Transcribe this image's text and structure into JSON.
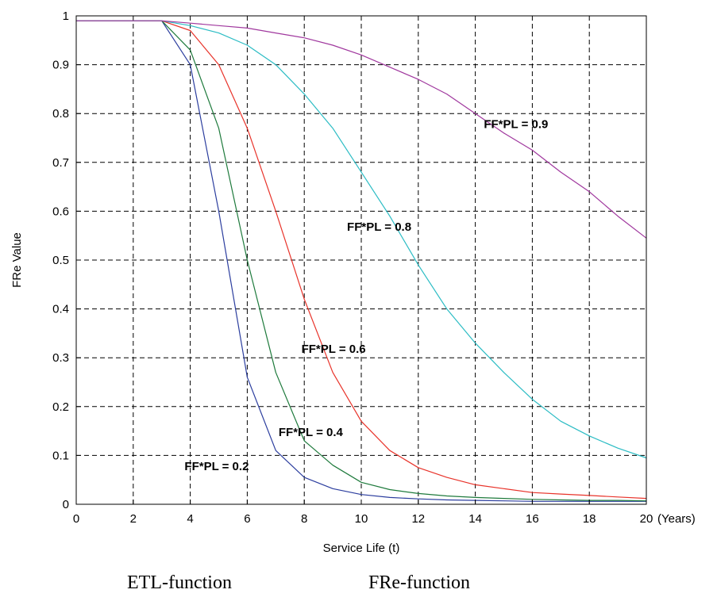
{
  "chart_data": {
    "type": "line",
    "xlabel": "Service Life (t)",
    "ylabel": "FRe Value",
    "x_unit_label": "(Years)",
    "xlim": [
      0,
      20
    ],
    "ylim": [
      0,
      1
    ],
    "xticks": [
      0,
      2,
      4,
      6,
      8,
      10,
      12,
      14,
      16,
      18,
      20
    ],
    "xtick_labels": [
      "0",
      "2",
      "4",
      "6",
      "8",
      "10",
      "12",
      "14",
      "16",
      "18",
      "20"
    ],
    "yticks": [
      0,
      0.1,
      0.2,
      0.3,
      0.4,
      0.5,
      0.6,
      0.7,
      0.8,
      0.9,
      1
    ],
    "ytick_labels": [
      "0",
      "0.1",
      "0.2",
      "0.3",
      "0.4",
      "0.5",
      "0.6",
      "0.7",
      "0.8",
      "0.9",
      "1"
    ],
    "grid": true,
    "grid_style": "dashed",
    "series": [
      {
        "color": "#2b3d9e",
        "x": [
          0,
          1,
          2,
          3,
          4,
          5,
          6,
          7,
          8,
          9,
          10,
          11,
          12,
          13,
          14,
          15,
          16,
          17,
          18,
          19,
          20
        ],
        "y": [
          0.99,
          0.99,
          0.99,
          0.99,
          0.9,
          0.6,
          0.26,
          0.11,
          0.055,
          0.032,
          0.02,
          0.014,
          0.011,
          0.009,
          0.008,
          0.007,
          0.006,
          0.006,
          0.006,
          0.006,
          0.006
        ]
      },
      {
        "color": "#1e7a3c",
        "x": [
          0,
          1,
          2,
          3,
          4,
          5,
          6,
          7,
          8,
          9,
          10,
          11,
          12,
          13,
          14,
          15,
          16,
          17,
          18,
          19,
          20
        ],
        "y": [
          0.99,
          0.99,
          0.99,
          0.99,
          0.93,
          0.77,
          0.5,
          0.27,
          0.13,
          0.08,
          0.045,
          0.03,
          0.022,
          0.017,
          0.014,
          0.012,
          0.01,
          0.009,
          0.008,
          0.008,
          0.007
        ]
      },
      {
        "color": "#e8332a",
        "x": [
          0,
          1,
          2,
          3,
          4,
          5,
          6,
          7,
          8,
          9,
          10,
          11,
          12,
          13,
          14,
          15,
          16,
          17,
          18,
          19,
          20
        ],
        "y": [
          0.99,
          0.99,
          0.99,
          0.99,
          0.97,
          0.9,
          0.77,
          0.6,
          0.42,
          0.27,
          0.17,
          0.11,
          0.075,
          0.055,
          0.04,
          0.032,
          0.024,
          0.021,
          0.018,
          0.015,
          0.012
        ]
      },
      {
        "color": "#2bbcc4",
        "x": [
          0,
          1,
          2,
          3,
          4,
          5,
          6,
          7,
          8,
          9,
          10,
          11,
          12,
          13,
          14,
          15,
          16,
          17,
          18,
          19,
          20
        ],
        "y": [
          0.99,
          0.99,
          0.99,
          0.99,
          0.98,
          0.965,
          0.94,
          0.9,
          0.84,
          0.77,
          0.68,
          0.59,
          0.49,
          0.4,
          0.33,
          0.27,
          0.215,
          0.17,
          0.14,
          0.115,
          0.095
        ]
      },
      {
        "color": "#a0389e",
        "x": [
          0,
          1,
          2,
          3,
          4,
          5,
          6,
          7,
          8,
          9,
          10,
          11,
          12,
          13,
          14,
          15,
          16,
          17,
          18,
          19,
          20
        ],
        "y": [
          0.99,
          0.99,
          0.99,
          0.99,
          0.985,
          0.98,
          0.975,
          0.965,
          0.955,
          0.94,
          0.92,
          0.895,
          0.87,
          0.84,
          0.8,
          0.76,
          0.725,
          0.68,
          0.64,
          0.59,
          0.545
        ]
      }
    ],
    "annotations": [
      {
        "text": "FF*PL = 0.2",
        "x": 3.8,
        "y": 0.07
      },
      {
        "text": "FF*PL = 0.4",
        "x": 7.1,
        "y": 0.14
      },
      {
        "text": "FF*PL = 0.6",
        "x": 7.9,
        "y": 0.31
      },
      {
        "text": "FF*PL = 0.8",
        "x": 9.5,
        "y": 0.56
      },
      {
        "text": "FF*PL = 0.9",
        "x": 14.3,
        "y": 0.77
      }
    ]
  },
  "captions": {
    "left": "ETL-function",
    "right": "FRe-function"
  }
}
